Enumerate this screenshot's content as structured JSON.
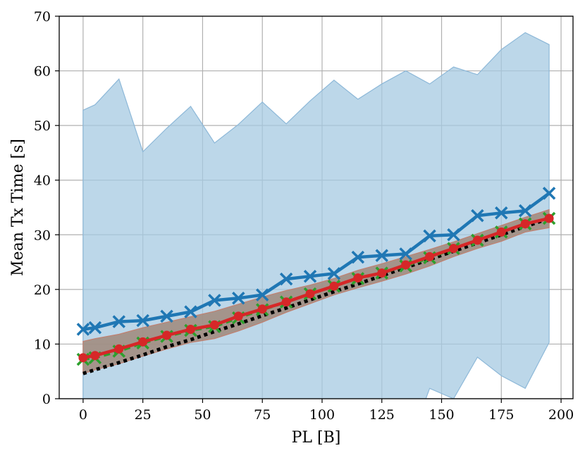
{
  "chart_data": {
    "type": "line",
    "xlabel": "PL [B]",
    "ylabel": "Mean Tx Time [s]",
    "xlim": [
      -10,
      205
    ],
    "ylim": [
      0,
      70
    ],
    "xticks": [
      0,
      25,
      50,
      75,
      100,
      125,
      150,
      175,
      200
    ],
    "yticks": [
      0,
      10,
      20,
      30,
      40,
      50,
      60,
      70
    ],
    "grid": true,
    "legend": "none",
    "bands": [
      {
        "color": "#a6c9e2",
        "stroke": "#8db8d8",
        "x": [
          0,
          5,
          15,
          25,
          35,
          45,
          55,
          65,
          75,
          85,
          95,
          105,
          115,
          125,
          135,
          145,
          155,
          165,
          175,
          185,
          195
        ],
        "upper": [
          52.8,
          53.8,
          58.5,
          45.2,
          49.5,
          53.5,
          46.8,
          50.2,
          54.3,
          50.3,
          54.5,
          58.3,
          54.8,
          57.6,
          60.0,
          57.6,
          60.7,
          59.3,
          63.9,
          67.0,
          64.8
        ],
        "lower": [
          -10,
          -10,
          -10,
          -10,
          -10,
          -10,
          -10,
          -10,
          -10,
          -10,
          -10,
          -10,
          -10,
          -10,
          -10,
          1.9,
          0.0,
          7.6,
          4.2,
          1.9,
          10.3
        ]
      },
      {
        "color": "#a0887a",
        "stroke": "#c08070",
        "x": [
          0,
          5,
          15,
          25,
          35,
          45,
          55,
          65,
          75,
          85,
          95,
          105,
          115,
          125,
          135,
          145,
          155,
          165,
          175,
          185,
          195
        ],
        "upper": [
          10.5,
          11.0,
          11.8,
          13.0,
          14.0,
          15.0,
          16.0,
          17.3,
          18.6,
          19.8,
          20.8,
          22.0,
          23.5,
          24.7,
          26.0,
          27.3,
          28.7,
          30.2,
          31.7,
          33.2,
          34.6
        ],
        "lower": [
          4.6,
          5.3,
          6.4,
          7.8,
          9.1,
          10.3,
          11.0,
          12.4,
          14.0,
          15.8,
          17.4,
          19.0,
          20.3,
          21.5,
          22.8,
          24.3,
          26.0,
          27.5,
          28.8,
          30.5,
          31.3
        ]
      }
    ],
    "series": [
      {
        "color": "#1f77b4",
        "marker": "x",
        "style": "solid",
        "x": [
          0,
          5,
          15,
          25,
          35,
          45,
          55,
          65,
          75,
          85,
          95,
          105,
          115,
          125,
          135,
          145,
          155,
          165,
          175,
          185,
          195
        ],
        "values": [
          12.7,
          13.0,
          14.1,
          14.3,
          15.1,
          15.9,
          18.0,
          18.4,
          19.0,
          21.9,
          22.4,
          22.9,
          25.9,
          26.2,
          26.5,
          29.8,
          30.0,
          33.5,
          34.0,
          34.4,
          37.6
        ]
      },
      {
        "color": "#000000",
        "marker": "none",
        "style": "dotted",
        "x": [
          0,
          5,
          15,
          25,
          35,
          45,
          55,
          65,
          75,
          85,
          95,
          105,
          115,
          125,
          135,
          145,
          155,
          165,
          175,
          185,
          195
        ],
        "values": [
          4.6,
          5.3,
          6.6,
          8.0,
          9.5,
          10.8,
          12.3,
          13.7,
          15.2,
          16.6,
          18.1,
          19.6,
          21.0,
          22.5,
          24.0,
          25.5,
          27.0,
          28.5,
          30.0,
          31.5,
          33.0
        ]
      },
      {
        "color": "#2ca02c",
        "marker": "x",
        "style": "dashed",
        "x": [
          0,
          5,
          15,
          25,
          35,
          45,
          55,
          65,
          75,
          85,
          95,
          105,
          115,
          125,
          135,
          145,
          155,
          165,
          175,
          185,
          195
        ],
        "values": [
          7.2,
          7.5,
          8.7,
          10.2,
          11.4,
          12.5,
          13.2,
          14.8,
          16.3,
          17.7,
          19.2,
          20.6,
          22.0,
          23.0,
          24.3,
          25.8,
          27.5,
          29.0,
          30.5,
          32.0,
          33.0
        ]
      },
      {
        "color": "#d62728",
        "marker": "o",
        "style": "solid",
        "x": [
          0,
          5,
          15,
          25,
          35,
          45,
          55,
          65,
          75,
          85,
          95,
          105,
          115,
          125,
          135,
          145,
          155,
          165,
          175,
          185,
          195
        ],
        "values": [
          7.5,
          7.9,
          9.1,
          10.4,
          11.6,
          12.7,
          13.5,
          15.1,
          16.4,
          17.7,
          19.2,
          20.6,
          22.1,
          23.0,
          24.5,
          26.0,
          27.5,
          29.0,
          30.5,
          32.0,
          33.0
        ]
      }
    ]
  }
}
